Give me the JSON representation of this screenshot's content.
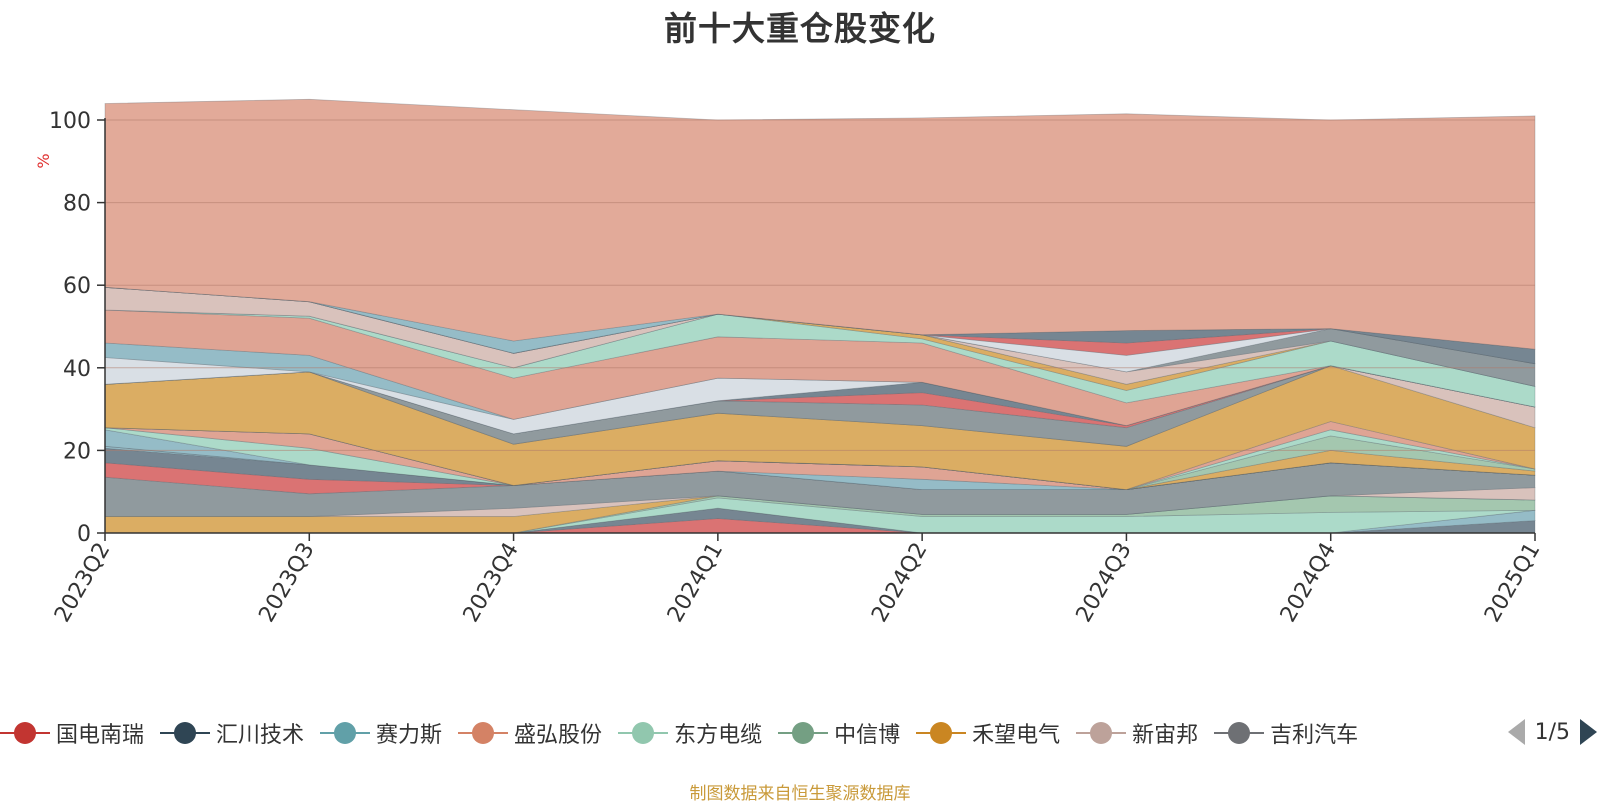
{
  "chart_data": {
    "type": "area",
    "stacked": true,
    "title": "前十大重仓股变化",
    "ylabel": "%",
    "ylim": [
      0,
      100
    ],
    "yticks": [
      0,
      20,
      40,
      60,
      80,
      100
    ],
    "grid": true,
    "legend_position": "bottom",
    "categories": [
      "2023Q2",
      "2023Q3",
      "2023Q4",
      "2024Q1",
      "2024Q2",
      "2024Q3",
      "2024Q4",
      "2025Q1"
    ],
    "series": [
      {
        "name": "",
        "color": "#d86b6b",
        "values": [
          0,
          0,
          0,
          3.5,
          0,
          0,
          0,
          0
        ]
      },
      {
        "name": "",
        "color": "#6f7f8c",
        "values": [
          0,
          0,
          0,
          2.5,
          0,
          0,
          0,
          3
        ]
      },
      {
        "name": "",
        "color": "#8fb8c4",
        "values": [
          0,
          0,
          0,
          0,
          0,
          0,
          0,
          2.5
        ]
      },
      {
        "name": "",
        "color": "#a8d8c6",
        "values": [
          0,
          0,
          0,
          2.5,
          4,
          4,
          5,
          0
        ]
      },
      {
        "name": "",
        "color": "#9fc4ab",
        "values": [
          0,
          0,
          0,
          0.5,
          0.5,
          0.5,
          4,
          2.5
        ]
      },
      {
        "name": "",
        "color": "#d9a95b",
        "values": [
          4,
          4,
          4,
          0,
          0,
          0,
          0,
          0
        ]
      },
      {
        "name": "",
        "color": "#d7bfb8",
        "values": [
          0,
          0,
          2,
          0,
          0,
          0,
          0,
          3
        ]
      },
      {
        "name": "",
        "color": "#8a9599",
        "values": [
          9.5,
          5.5,
          5.5,
          6,
          6,
          6,
          8,
          3
        ]
      },
      {
        "name": "",
        "color": "#d86b6b",
        "values": [
          3.5,
          3.5,
          0,
          0,
          0,
          0,
          0,
          0
        ]
      },
      {
        "name": "",
        "color": "#6f7f8c",
        "values": [
          3.5,
          3.5,
          0,
          0,
          0,
          0,
          0,
          0
        ]
      },
      {
        "name": "",
        "color": "#8fb8c4",
        "values": [
          0.5,
          0,
          0,
          0,
          2.5,
          0,
          0,
          0
        ]
      },
      {
        "name": "",
        "color": "#dd9f8e",
        "values": [
          0,
          0,
          0,
          2.5,
          3,
          0,
          0,
          0
        ]
      },
      {
        "name": "",
        "color": "#8fb8c4",
        "values": [
          4,
          0,
          0,
          0,
          0,
          0,
          0,
          0
        ]
      },
      {
        "name": "",
        "color": "#a8d8c6",
        "values": [
          0.5,
          4,
          0,
          0,
          0,
          0,
          0,
          0
        ]
      },
      {
        "name": "",
        "color": "#dd9f8e",
        "values": [
          0,
          3.5,
          0,
          0,
          0,
          0,
          0,
          0
        ]
      },
      {
        "name": "",
        "color": "#d9a95b",
        "values": [
          0,
          0,
          0,
          0,
          0,
          0,
          3,
          1
        ]
      },
      {
        "name": "",
        "color": "#9fc4ab",
        "values": [
          0,
          0,
          0,
          0,
          0,
          0,
          3.5,
          0.5
        ]
      },
      {
        "name": "",
        "color": "#a8d8c6",
        "values": [
          0,
          0,
          0,
          0,
          0,
          0,
          1.5,
          0
        ]
      },
      {
        "name": "",
        "color": "#dd9f8e",
        "values": [
          0,
          0,
          0,
          0,
          0,
          0,
          2,
          0
        ]
      },
      {
        "name": "",
        "color": "#d9a95b",
        "values": [
          10.5,
          15,
          10,
          11.5,
          10,
          10.5,
          13.5,
          10
        ]
      },
      {
        "name": "",
        "color": "#d7bfb8",
        "values": [
          0,
          0,
          0,
          0,
          0,
          0,
          0,
          5
        ]
      },
      {
        "name": "",
        "color": "#8a9599",
        "values": [
          0,
          0,
          2.5,
          3,
          5,
          4.5,
          0,
          0
        ]
      },
      {
        "name": "",
        "color": "#d86b6b",
        "values": [
          0,
          0,
          0,
          0,
          3,
          0.5,
          0,
          0
        ]
      },
      {
        "name": "",
        "color": "#6f7f8c",
        "values": [
          0,
          0,
          0,
          0,
          2.5,
          0,
          0,
          0
        ]
      },
      {
        "name": "",
        "color": "#d7dde4",
        "values": [
          6.5,
          0,
          3.5,
          5.5,
          0,
          0,
          0,
          0
        ]
      },
      {
        "name": "",
        "color": "#8fb8c4",
        "values": [
          3.5,
          4,
          0,
          0,
          0,
          0,
          0,
          0
        ]
      },
      {
        "name": "",
        "color": "#dd9f8e",
        "values": [
          8,
          9,
          10,
          10,
          9.5,
          5.5,
          0,
          0
        ]
      },
      {
        "name": "",
        "color": "#a8d8c6",
        "values": [
          0,
          0.5,
          2.5,
          5.5,
          1,
          3,
          6,
          5
        ]
      },
      {
        "name": "",
        "color": "#d9a95b",
        "values": [
          0,
          0,
          0,
          0,
          1,
          1.5,
          0,
          0
        ]
      },
      {
        "name": "",
        "color": "#d7bfb8",
        "values": [
          5.5,
          3.5,
          3.5,
          0,
          0,
          3,
          0,
          0
        ]
      },
      {
        "name": "",
        "color": "#8a9599",
        "values": [
          0,
          0,
          0,
          0,
          0,
          0,
          3,
          5.5
        ]
      },
      {
        "name": "",
        "color": "#d7dde4",
        "values": [
          0,
          0,
          0,
          0,
          0,
          4,
          0,
          0
        ]
      },
      {
        "name": "",
        "color": "#d86b6b",
        "values": [
          0,
          0,
          0,
          0,
          0,
          3,
          0,
          0
        ]
      },
      {
        "name": "",
        "color": "#6f7f8c",
        "values": [
          0,
          0,
          0,
          0,
          0,
          3,
          0,
          3.5
        ]
      },
      {
        "name": "",
        "color": "#8fb8c4",
        "values": [
          0,
          0,
          3,
          0,
          0,
          0,
          0,
          0
        ]
      },
      {
        "name": "",
        "color": "#e0a593",
        "values": [
          44.5,
          49,
          56,
          47,
          52.5,
          52.5,
          50.5,
          56.5
        ]
      }
    ],
    "legend": [
      {
        "label": "国电南瑞",
        "color": "#c23531"
      },
      {
        "label": "汇川技术",
        "color": "#2f4554"
      },
      {
        "label": "赛力斯",
        "color": "#61a0a8"
      },
      {
        "label": "盛弘股份",
        "color": "#d48265"
      },
      {
        "label": "东方电缆",
        "color": "#91c7ae"
      },
      {
        "label": "中信博",
        "color": "#749f83"
      },
      {
        "label": "禾望电气",
        "color": "#ca8622"
      },
      {
        "label": "新宙邦",
        "color": "#bda29a"
      },
      {
        "label": "吉利汽车",
        "color": "#6e7074"
      }
    ],
    "legend_page": "1/5",
    "source_note": "制图数据来自恒生聚源数据库"
  }
}
